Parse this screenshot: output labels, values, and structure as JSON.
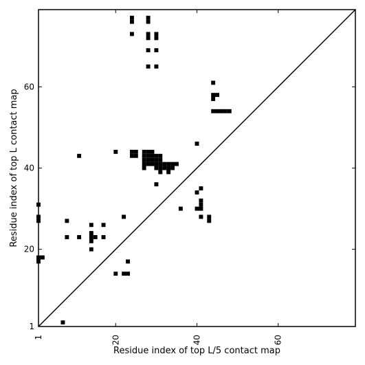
{
  "chart_data": {
    "type": "heatmap",
    "title": "",
    "xlabel": "Residue index of top L/5 contact map",
    "ylabel": "Residue index of top L contact map",
    "xlim": [
      1,
      79
    ],
    "ylim": [
      1,
      79
    ],
    "x_ticks": [
      1,
      20,
      40,
      60
    ],
    "y_ticks": [
      1,
      20,
      40,
      60
    ],
    "x_tick_labels": [
      "1",
      "20",
      "40",
      "60"
    ],
    "y_tick_labels": [
      "1",
      "20",
      "40",
      "60"
    ],
    "x_tick_rotation_deg": 270,
    "diagonal": true,
    "cell_color": "#000000",
    "lower_triangle_contacts": [
      [
        1,
        31
      ],
      [
        1,
        28
      ],
      [
        1,
        27
      ],
      [
        1,
        18
      ],
      [
        1,
        17
      ],
      [
        2,
        18
      ],
      [
        8,
        27
      ],
      [
        8,
        23
      ],
      [
        11,
        23
      ],
      [
        11,
        43
      ],
      [
        14,
        26
      ],
      [
        14,
        24
      ],
      [
        14,
        23
      ],
      [
        14,
        22
      ],
      [
        14,
        20
      ],
      [
        15,
        23
      ],
      [
        17,
        26
      ],
      [
        17,
        23
      ],
      [
        20,
        44
      ],
      [
        20,
        14
      ],
      [
        22,
        28
      ],
      [
        22,
        14
      ],
      [
        23,
        17
      ],
      [
        23,
        14
      ],
      [
        36,
        30
      ],
      [
        40,
        46
      ],
      [
        40,
        34
      ],
      [
        40,
        30
      ],
      [
        41,
        35
      ],
      [
        41,
        32
      ],
      [
        41,
        31
      ],
      [
        41,
        30
      ],
      [
        41,
        28
      ],
      [
        43,
        28
      ],
      [
        43,
        27
      ],
      [
        7,
        2
      ]
    ],
    "upper_triangle_contacts": [
      [
        24,
        77
      ],
      [
        24,
        76
      ],
      [
        24,
        73
      ],
      [
        28,
        77
      ],
      [
        28,
        76
      ],
      [
        28,
        73
      ],
      [
        28,
        72
      ],
      [
        28,
        69
      ],
      [
        28,
        65
      ],
      [
        30,
        73
      ],
      [
        30,
        72
      ],
      [
        30,
        69
      ],
      [
        30,
        65
      ],
      [
        24,
        44
      ],
      [
        25,
        44
      ],
      [
        24,
        43
      ],
      [
        25,
        43
      ],
      [
        27,
        44
      ],
      [
        28,
        44
      ],
      [
        29,
        44
      ],
      [
        27,
        43
      ],
      [
        28,
        43
      ],
      [
        29,
        43
      ],
      [
        30,
        43
      ],
      [
        31,
        43
      ],
      [
        27,
        42
      ],
      [
        28,
        42
      ],
      [
        29,
        42
      ],
      [
        30,
        42
      ],
      [
        31,
        42
      ],
      [
        27,
        41
      ],
      [
        28,
        41
      ],
      [
        29,
        41
      ],
      [
        30,
        41
      ],
      [
        31,
        41
      ],
      [
        32,
        41
      ],
      [
        33,
        41
      ],
      [
        34,
        41
      ],
      [
        35,
        41
      ],
      [
        27,
        40
      ],
      [
        30,
        40
      ],
      [
        31,
        40
      ],
      [
        32,
        40
      ],
      [
        33,
        40
      ],
      [
        34,
        40
      ],
      [
        31,
        39
      ],
      [
        33,
        39
      ],
      [
        30,
        36
      ],
      [
        44,
        61
      ],
      [
        44,
        58
      ],
      [
        45,
        58
      ],
      [
        44,
        57
      ],
      [
        44,
        54
      ],
      [
        45,
        54
      ],
      [
        46,
        54
      ],
      [
        47,
        54
      ],
      [
        48,
        54
      ]
    ]
  }
}
